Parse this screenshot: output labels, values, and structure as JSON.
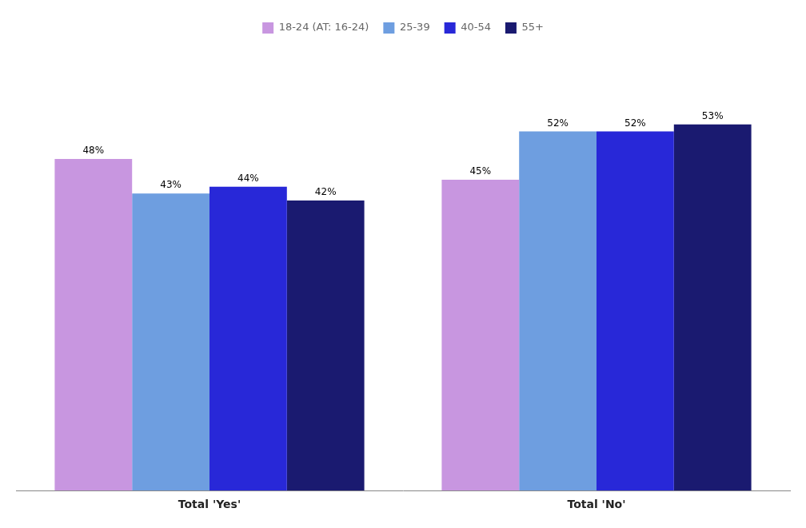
{
  "chart_data": {
    "type": "bar",
    "categories": [
      "Total 'Yes'",
      "Total 'No'"
    ],
    "series": [
      {
        "name": "18-24 (AT: 16-24)",
        "color": "#C896E0",
        "values": [
          48,
          45
        ],
        "value_labels": [
          "48%",
          "45%"
        ]
      },
      {
        "name": "25-39",
        "color": "#6E9EE0",
        "values": [
          43,
          52
        ],
        "value_labels": [
          "43%",
          "52%"
        ]
      },
      {
        "name": "40-54",
        "color": "#2828D8",
        "values": [
          44,
          52
        ],
        "value_labels": [
          "44%",
          "52%"
        ]
      },
      {
        "name": "55+",
        "color": "#1A1A70",
        "values": [
          42,
          53
        ],
        "value_labels": [
          "42%",
          "53%"
        ]
      }
    ],
    "ylim": [
      0,
      65
    ],
    "grid": false,
    "legend": "top",
    "data_labels": true,
    "tick_labels": "x"
  }
}
